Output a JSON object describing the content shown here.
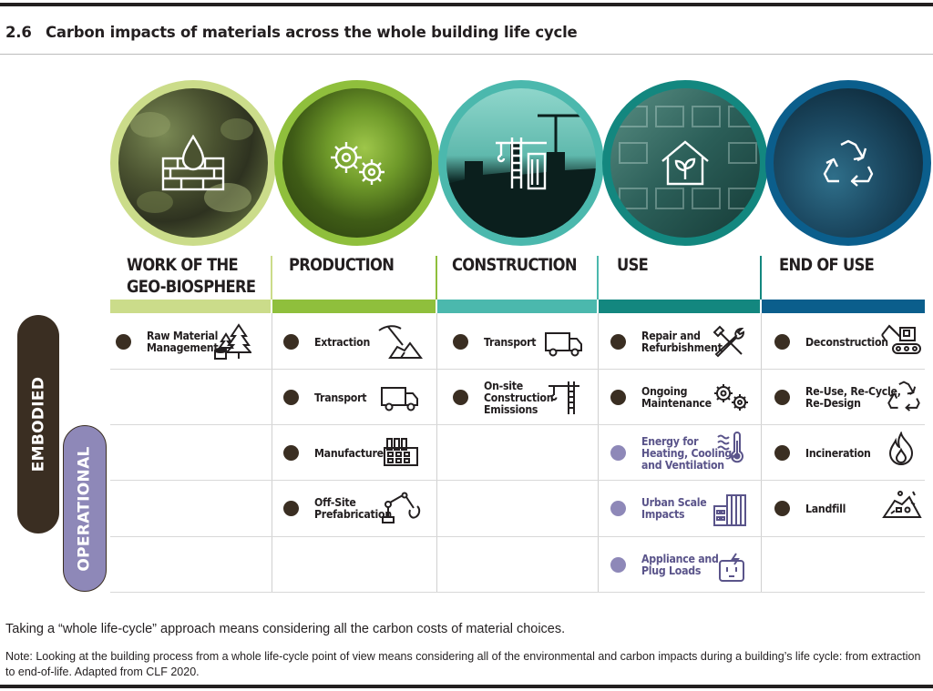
{
  "header": {
    "number": "2.6",
    "title": "Carbon impacts of materials across the whole building life cycle"
  },
  "colors": {
    "ink": "#231f20",
    "embodied": "#3a2e22",
    "operational": "#8e88b8",
    "operational_text": "#5a548a"
  },
  "stages": [
    {
      "label": "WORK OF THE\nGEO-BIOSPHERE",
      "icon": "land-water-drop-icon",
      "color": "#cbdc8a"
    },
    {
      "label": "PRODUCTION",
      "icon": "gears-icon",
      "color": "#8fbf3c"
    },
    {
      "label": "CONSTRUCTION",
      "icon": "crane-building-icon",
      "color": "#4bb8ad"
    },
    {
      "label": "USE",
      "icon": "house-leaf-icon",
      "color": "#13877f"
    },
    {
      "label": "END OF USE",
      "icon": "recycle-icon",
      "color": "#0b5e8c"
    }
  ],
  "categories": {
    "embodied": "EMBODIED",
    "operational": "OPERATIONAL"
  },
  "items": {
    "geo": [
      {
        "label": "Raw Material\nManagement",
        "icon": "trees-stump-icon",
        "kind": "embodied"
      }
    ],
    "production": [
      {
        "label": "Extraction",
        "icon": "pickaxe-rocks-icon",
        "kind": "embodied"
      },
      {
        "label": "Transport",
        "icon": "truck-icon",
        "kind": "embodied"
      },
      {
        "label": "Manufacture",
        "icon": "factory-icon",
        "kind": "embodied"
      },
      {
        "label": "Off-Site\nPrefabrication",
        "icon": "robot-arm-icon",
        "kind": "embodied"
      }
    ],
    "construction": [
      {
        "label": "Transport",
        "icon": "truck-icon",
        "kind": "embodied"
      },
      {
        "label": "On-site\nConstruction\nEmissions",
        "icon": "crane-icon",
        "kind": "embodied"
      }
    ],
    "use": [
      {
        "label": "Repair and\nRefurbishment",
        "icon": "tools-icon",
        "kind": "embodied"
      },
      {
        "label": "Ongoing\nMaintenance",
        "icon": "gears-icon",
        "kind": "embodied"
      },
      {
        "label": "Energy for\nHeating, Cooling,\nand Ventilation",
        "icon": "thermometer-icon",
        "kind": "operational"
      },
      {
        "label": "Urban Scale\nImpacts",
        "icon": "buildings-icon",
        "kind": "operational"
      },
      {
        "label": "Appliance and\nPlug Loads",
        "icon": "plug-socket-icon",
        "kind": "operational"
      }
    ],
    "end": [
      {
        "label": "Deconstruction",
        "icon": "excavator-icon",
        "kind": "embodied"
      },
      {
        "label": "Re-Use, Re-Cycle,\nRe-Design",
        "icon": "recycle-icon",
        "kind": "embodied"
      },
      {
        "label": "Incineration",
        "icon": "flame-icon",
        "kind": "embodied"
      },
      {
        "label": "Landfill",
        "icon": "landfill-pile-icon",
        "kind": "embodied"
      }
    ]
  },
  "caption": "Taking a “whole life-cycle” approach means considering all the carbon costs of material choices.",
  "note": "Note: Looking at the building process from a whole life-cycle point of view means considering all of the environmental and carbon impacts during a building’s life cycle: from extraction to end-of-life. Adapted from CLF 2020."
}
